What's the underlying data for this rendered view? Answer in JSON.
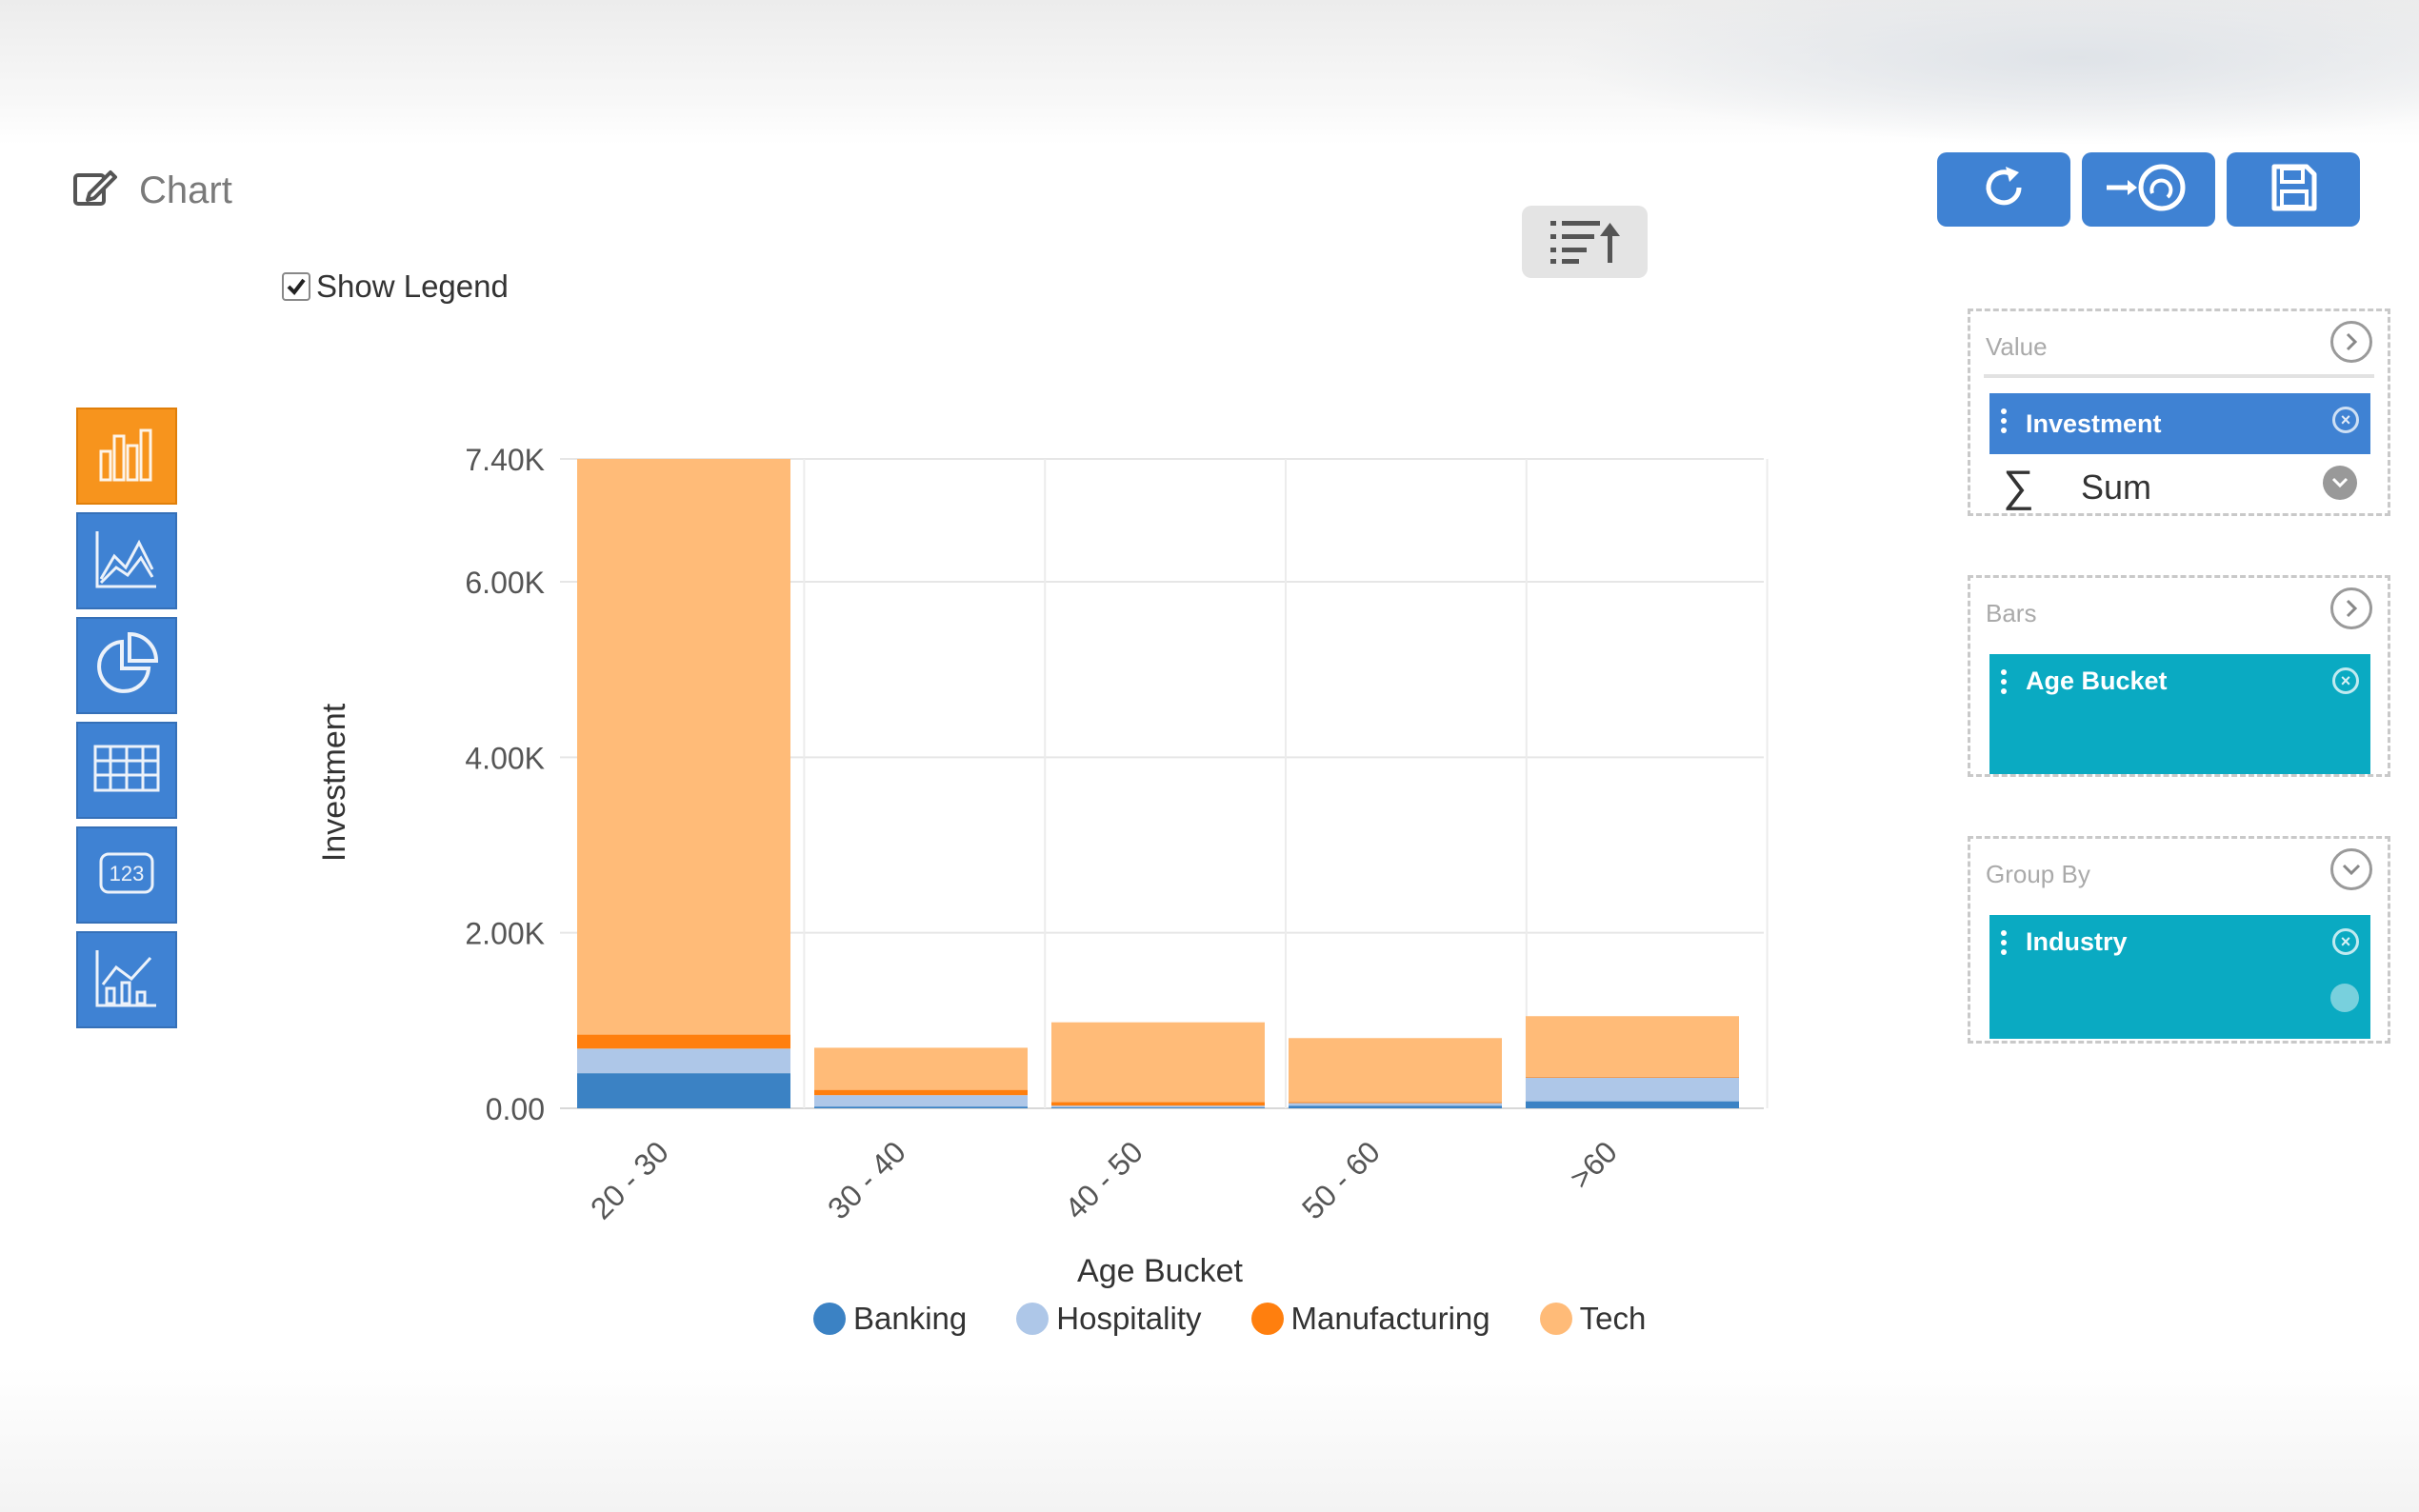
{
  "header": {
    "title": "Chart"
  },
  "legend_toggle": {
    "label": "Show Legend",
    "checked": true
  },
  "chart_types": [
    {
      "name": "bar-chart-icon",
      "active": true
    },
    {
      "name": "area-chart-icon",
      "active": false
    },
    {
      "name": "pie-chart-icon",
      "active": false
    },
    {
      "name": "table-icon",
      "active": false
    },
    {
      "name": "number-icon",
      "active": false
    },
    {
      "name": "mixed-chart-icon",
      "active": false
    }
  ],
  "panels": {
    "value": {
      "label": "Value",
      "chip": "Investment",
      "aggregation": "Sum"
    },
    "bars": {
      "label": "Bars",
      "chip": "Age Bucket"
    },
    "group_by": {
      "label": "Group By",
      "chip": "Industry"
    }
  },
  "colors": {
    "button_blue": "#3f82d3",
    "active_orange": "#f7941d",
    "chip_teal": "#0aaac2",
    "Banking": "#3b82c4",
    "Hospitality": "#aec7e8",
    "Manufacturing": "#ff7f0e",
    "Tech": "#ffbb78"
  },
  "chart_data": {
    "type": "bar",
    "stacked": true,
    "categories": [
      "20 - 30",
      "30 - 40",
      "40 - 50",
      "50 - 60",
      ">60"
    ],
    "series": [
      {
        "name": "Banking",
        "values": [
          400,
          20,
          10,
          30,
          80
        ]
      },
      {
        "name": "Hospitality",
        "values": [
          280,
          130,
          20,
          30,
          270
        ]
      },
      {
        "name": "Manufacturing",
        "values": [
          160,
          60,
          40,
          10,
          10
        ]
      },
      {
        "name": "Tech",
        "values": [
          6560,
          480,
          910,
          730,
          690
        ]
      }
    ],
    "ylim": [
      0,
      7400
    ],
    "yticks": [
      0,
      2000,
      4000,
      6000,
      7400
    ],
    "ytick_labels": [
      "0.00",
      "2.00K",
      "4.00K",
      "6.00K",
      "7.40K"
    ],
    "xlabel": "Age Bucket",
    "ylabel": "Investment",
    "legend": [
      "Banking",
      "Hospitality",
      "Manufacturing",
      "Tech"
    ],
    "grid": true,
    "legend_position": "bottom"
  }
}
